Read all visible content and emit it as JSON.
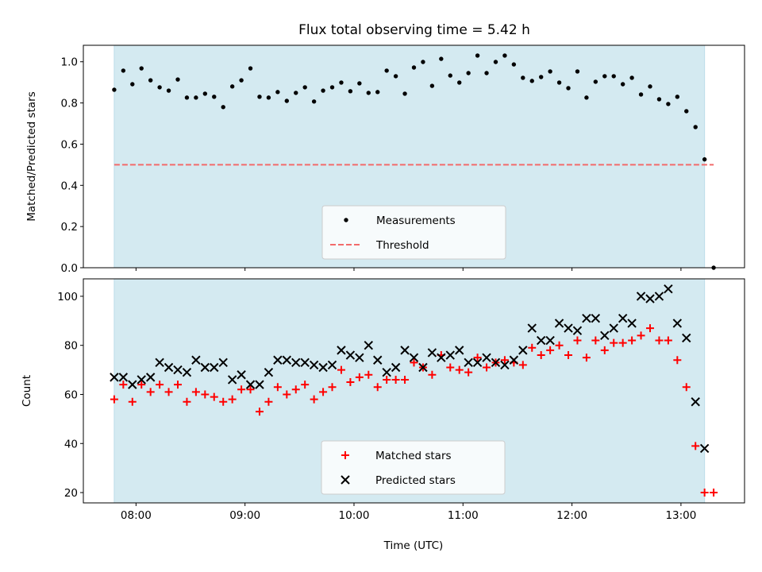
{
  "chart_data": [
    {
      "type": "scatter",
      "title": "Flux total observing time = 5.42 h",
      "xlabel": "",
      "ylabel": "Matched/Predicted stars",
      "ylim": [
        0,
        1.08
      ],
      "xlim": [
        "07:31",
        "13:35"
      ],
      "yticks": [
        "0.0",
        "0.2",
        "0.4",
        "0.6",
        "0.8",
        "1.0"
      ],
      "xticks": [
        "08:00",
        "09:00",
        "10:00",
        "11:00",
        "12:00",
        "13:00"
      ],
      "shaded_span": [
        "07:48",
        "13:13"
      ],
      "threshold": {
        "value": 0.5,
        "from": "07:48",
        "to": "13:18"
      },
      "legend": {
        "placement": "lower-center",
        "entries": [
          "Measurements",
          "Threshold"
        ]
      },
      "series": [
        {
          "name": "Measurements",
          "marker": "dot",
          "color": "#000000",
          "values": [
            0.864,
            0.957,
            0.891,
            0.968,
            0.91,
            0.876,
            0.86,
            0.914,
            0.826,
            0.826,
            0.845,
            0.83,
            0.78,
            0.88,
            0.91,
            0.968,
            0.83,
            0.826,
            0.853,
            0.81,
            0.849,
            0.876,
            0.807,
            0.86,
            0.876,
            0.899,
            0.857,
            0.895,
            0.849,
            0.853,
            0.957,
            0.93,
            0.845,
            0.972,
            0.999,
            0.883,
            1.014,
            0.933,
            0.899,
            0.945,
            1.03,
            0.945,
            0.999,
            1.03,
            0.987,
            0.922,
            0.907,
            0.926,
            0.953,
            0.899,
            0.872,
            0.953,
            0.826,
            0.903,
            0.93,
            0.93,
            0.891,
            0.922,
            0.841,
            0.88,
            0.818,
            0.795,
            0.83,
            0.76,
            0.683,
            0.526,
            0.0
          ]
        },
        {
          "name": "Threshold",
          "style": "dashed",
          "color": "#f26b6b"
        }
      ]
    },
    {
      "type": "scatter",
      "title": "",
      "xlabel": "Time (UTC)",
      "ylabel": "Count",
      "ylim": [
        15.8,
        107.1
      ],
      "yticks": [
        "20",
        "40",
        "60",
        "80",
        "100"
      ],
      "xticks": [
        "08:00",
        "09:00",
        "10:00",
        "11:00",
        "12:00",
        "13:00"
      ],
      "shaded_span": [
        "07:48",
        "13:13"
      ],
      "legend": {
        "placement": "lower-center",
        "entries": [
          "Matched stars",
          "Predicted stars"
        ]
      },
      "series": [
        {
          "name": "Matched stars",
          "marker": "plus",
          "color": "#ff0000",
          "values": [
            58,
            64,
            57,
            64,
            61,
            64,
            61,
            64,
            57,
            61,
            60,
            59,
            57,
            58,
            62,
            62,
            53,
            57,
            63,
            60,
            62,
            64,
            58,
            61,
            63,
            70,
            65,
            67,
            68,
            63,
            66,
            66,
            66,
            73,
            71,
            68,
            76,
            71,
            70,
            69,
            75,
            71,
            73,
            74,
            73,
            72,
            79,
            76,
            78,
            80,
            76,
            82,
            75,
            82,
            78,
            81,
            81,
            82,
            84,
            87,
            82,
            82,
            74,
            63,
            39,
            20,
            20
          ]
        },
        {
          "name": "Predicted stars",
          "marker": "x",
          "color": "#000000",
          "values": [
            67,
            67,
            64,
            66,
            67,
            73,
            71,
            70,
            69,
            74,
            71,
            71,
            73,
            66,
            68,
            64,
            64,
            69,
            74,
            74,
            73,
            73,
            72,
            71,
            72,
            78,
            76,
            75,
            80,
            74,
            69,
            71,
            78,
            75,
            71,
            77,
            75,
            76,
            78,
            73,
            73,
            75,
            73,
            72,
            74,
            78,
            87,
            82,
            82,
            89,
            87,
            86,
            91,
            91,
            84,
            87,
            91,
            89,
            100,
            99,
            100,
            103,
            89,
            83,
            57,
            38,
            null
          ]
        }
      ]
    }
  ],
  "times": [
    "07:48",
    "07:53",
    "07:58",
    "08:03",
    "08:08",
    "08:13",
    "08:18",
    "08:23",
    "08:28",
    "08:33",
    "08:38",
    "08:43",
    "08:48",
    "08:53",
    "08:58",
    "09:03",
    "09:08",
    "09:13",
    "09:18",
    "09:23",
    "09:28",
    "09:33",
    "09:38",
    "09:43",
    "09:48",
    "09:53",
    "09:58",
    "10:03",
    "10:08",
    "10:13",
    "10:18",
    "10:23",
    "10:28",
    "10:33",
    "10:38",
    "10:43",
    "10:48",
    "10:53",
    "10:58",
    "11:03",
    "11:08",
    "11:13",
    "11:18",
    "11:23",
    "11:28",
    "11:33",
    "11:38",
    "11:43",
    "11:48",
    "11:53",
    "11:58",
    "12:03",
    "12:08",
    "12:13",
    "12:18",
    "12:23",
    "12:28",
    "12:33",
    "12:38",
    "12:43",
    "12:48",
    "12:53",
    "12:58",
    "13:03",
    "13:08",
    "13:13",
    "13:18"
  ]
}
